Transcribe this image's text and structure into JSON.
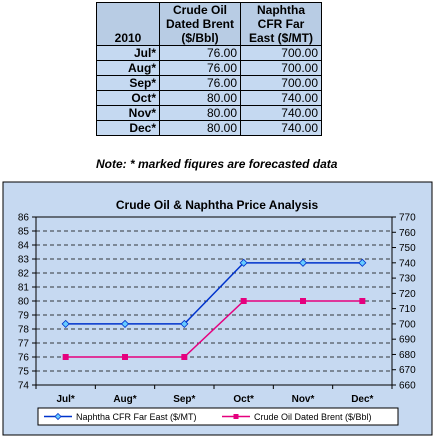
{
  "table": {
    "headers": [
      "2010",
      "Crude Oil Dated Brent ($/Bbl)",
      "Naphtha CFR Far East ($/MT)"
    ],
    "header_lines": [
      [
        "2010"
      ],
      [
        "Crude Oil",
        "Dated Brent",
        "($/Bbl)"
      ],
      [
        "Naphtha",
        "CFR Far",
        "East ($/MT)"
      ]
    ],
    "rows": [
      {
        "month": "Jul*",
        "brent": "76.00",
        "naphtha": "700.00"
      },
      {
        "month": "Aug*",
        "brent": "76.00",
        "naphtha": "700.00"
      },
      {
        "month": "Sep*",
        "brent": "76.00",
        "naphtha": "700.00"
      },
      {
        "month": "Oct*",
        "brent": "80.00",
        "naphtha": "740.00"
      },
      {
        "month": "Nov*",
        "brent": "80.00",
        "naphtha": "740.00"
      },
      {
        "month": "Dec*",
        "brent": "80.00",
        "naphtha": "740.00"
      }
    ],
    "note": "Note: * marked fiqures are forecasted data"
  },
  "chart_data": {
    "type": "line",
    "title": "Crude Oil & Naphtha Price Analysis",
    "categories": [
      "Jul*",
      "Aug*",
      "Sep*",
      "Oct*",
      "Nov*",
      "Dec*"
    ],
    "series": [
      {
        "name": "Naphtha CFR Far East ($/MT)",
        "axis": "right",
        "marker": "diamond",
        "color": "#0033cc",
        "values": [
          700,
          700,
          700,
          740,
          740,
          740
        ]
      },
      {
        "name": "Crude Oil Dated Brent ($/Bbl)",
        "axis": "left",
        "marker": "square",
        "color": "#e5007e",
        "values": [
          76,
          76,
          76,
          80,
          80,
          80
        ]
      }
    ],
    "y_left": {
      "min": 74,
      "max": 86,
      "step": 1
    },
    "y_right": {
      "min": 660,
      "max": 770,
      "step": 10
    },
    "grid": true,
    "legend_position": "bottom",
    "colors": {
      "outer_bg": "#c6d9f1",
      "plot_bg": "#c6d9f1",
      "table_header_bg": "#b8cce4",
      "table_cell_bg": "#c5d9f1"
    }
  }
}
